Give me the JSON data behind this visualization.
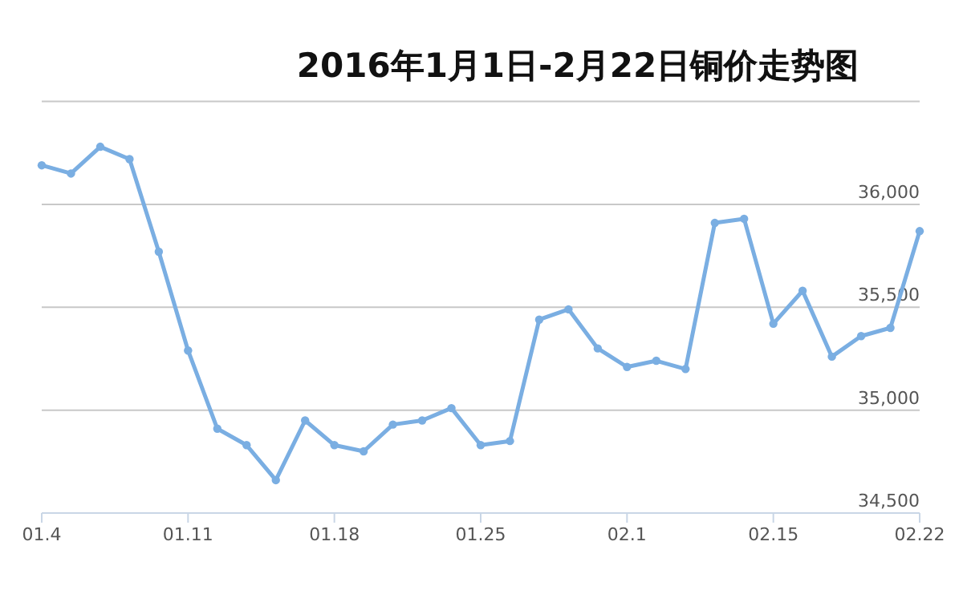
{
  "chart_data": {
    "type": "line",
    "title": "2016年1月1日-2月22日铜价走势图",
    "categories": [
      "01.4",
      null,
      null,
      null,
      null,
      "01.11",
      null,
      null,
      null,
      null,
      "01.18",
      null,
      null,
      null,
      null,
      "01.25",
      null,
      null,
      null,
      null,
      "02.1",
      null,
      null,
      null,
      null,
      "02.15",
      null,
      null,
      null,
      null,
      "02.22"
    ],
    "series": [
      {
        "color": "#7aaee2",
        "values": [
          36190,
          36150,
          36280,
          36220,
          35770,
          35290,
          34910,
          34830,
          34660,
          34950,
          34830,
          34800,
          34930,
          34950,
          35010,
          34830,
          34850,
          35440,
          35490,
          35300,
          35210,
          35240,
          35200,
          35910,
          35930,
          35420,
          35580,
          35260,
          35360,
          35400,
          35870
        ]
      }
    ],
    "ylim": [
      34500,
      36500
    ],
    "yticks": [
      {
        "value": 34500,
        "label": "34,500"
      },
      {
        "value": 35000,
        "label": "35,000"
      },
      {
        "value": 35500,
        "label": "35,500"
      },
      {
        "value": 36000,
        "label": "36,000"
      },
      {
        "value": 36500,
        "label": null
      }
    ],
    "grid": "y",
    "marker": "circle",
    "line_style": "solid"
  }
}
